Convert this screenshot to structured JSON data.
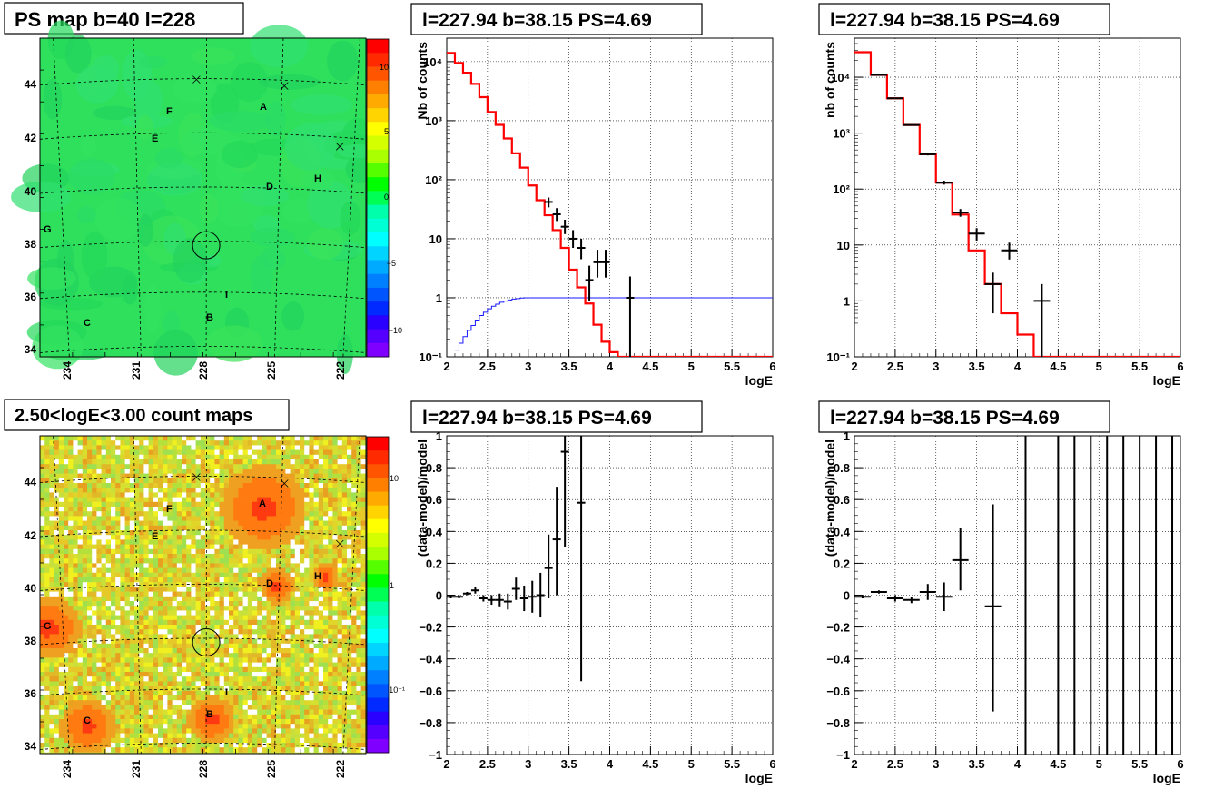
{
  "map1": {
    "title": "PS map b=40 l=228",
    "x_ticks": [
      "234",
      "231",
      "228",
      "225",
      "222"
    ],
    "y_ticks": [
      "44",
      "42",
      "40",
      "38",
      "36",
      "34"
    ],
    "colorbar_ticks": [
      "10",
      "5",
      "0",
      "−5",
      "−10"
    ],
    "sources": [
      "A",
      "B",
      "C",
      "D",
      "E",
      "F",
      "G",
      "H",
      "I"
    ]
  },
  "map2": {
    "title": "2.50<logE<3.00 count maps",
    "x_ticks": [
      "234",
      "231",
      "228",
      "225",
      "222"
    ],
    "y_ticks": [
      "44",
      "42",
      "40",
      "38",
      "36",
      "34"
    ],
    "colorbar_ticks": [
      "10",
      "1",
      "10⁻¹"
    ],
    "sources": [
      "A",
      "B",
      "C",
      "D",
      "E",
      "F",
      "G",
      "H",
      "I"
    ]
  },
  "chart_data": [
    {
      "type": "line",
      "title": "l=227.94 b=38.15 PS=4.69",
      "xlabel": "logE",
      "ylabel": "Nb of counts",
      "yscale": "log",
      "xlim": [
        2,
        6
      ],
      "ylim": [
        0.1,
        25000
      ],
      "grid": true,
      "x_ticks": [
        "2",
        "2.5",
        "3",
        "3.5",
        "4",
        "4.5",
        "5",
        "5.5",
        "6"
      ],
      "y_ticks": [
        "10⁴",
        "10³",
        "10²",
        "10",
        "1",
        "10⁻¹"
      ],
      "model_steps": {
        "edges": [
          2.0,
          2.1,
          2.2,
          2.3,
          2.4,
          2.5,
          2.6,
          2.7,
          2.8,
          2.9,
          3.0,
          3.1,
          3.2,
          3.3,
          3.4,
          3.5,
          3.6,
          3.7,
          3.8,
          3.9,
          4.0,
          4.1,
          6.0
        ],
        "values": [
          14000,
          9500,
          6500,
          4200,
          2500,
          1400,
          850,
          500,
          280,
          160,
          80,
          45,
          25,
          14,
          7,
          3,
          1.5,
          0.8,
          0.35,
          0.18,
          0.12,
          0.1
        ]
      },
      "acceptance_steps": {
        "edges": [
          2.1,
          2.15,
          2.2,
          2.25,
          2.3,
          2.35,
          2.4,
          2.45,
          2.5,
          2.55,
          2.6,
          2.65,
          2.7,
          2.75,
          2.8,
          2.85,
          2.9,
          2.95,
          3.0,
          3.1,
          6.0
        ],
        "values": [
          0.13,
          0.17,
          0.22,
          0.28,
          0.34,
          0.42,
          0.5,
          0.57,
          0.65,
          0.72,
          0.78,
          0.84,
          0.88,
          0.92,
          0.95,
          0.97,
          0.99,
          1.0,
          1.0,
          1.0
        ]
      },
      "points": [
        {
          "x": 3.25,
          "y": 42,
          "xerr": 0.05,
          "ylo": 34,
          "yhi": 50
        },
        {
          "x": 3.35,
          "y": 26,
          "xerr": 0.05,
          "ylo": 20,
          "yhi": 33
        },
        {
          "x": 3.45,
          "y": 16,
          "xerr": 0.05,
          "ylo": 12,
          "yhi": 21
        },
        {
          "x": 3.55,
          "y": 10,
          "xerr": 0.05,
          "ylo": 7,
          "yhi": 14
        },
        {
          "x": 3.65,
          "y": 7,
          "xerr": 0.05,
          "ylo": 4.5,
          "yhi": 10
        },
        {
          "x": 3.75,
          "y": 2,
          "xerr": 0.05,
          "ylo": 0.9,
          "yhi": 3.5
        },
        {
          "x": 3.85,
          "y": 4,
          "xerr": 0.05,
          "ylo": 2.2,
          "yhi": 6.5
        },
        {
          "x": 3.95,
          "y": 4,
          "xerr": 0.05,
          "ylo": 2.2,
          "yhi": 6.5
        },
        {
          "x": 4.25,
          "y": 1,
          "xerr": 0.05,
          "ylo": 0.1,
          "yhi": 2.3
        }
      ]
    },
    {
      "type": "line",
      "title": "l=227.94 b=38.15 PS=4.69",
      "xlabel": "logE",
      "ylabel": "nb of counts",
      "yscale": "log",
      "xlim": [
        2,
        6
      ],
      "ylim": [
        0.1,
        50000
      ],
      "grid": true,
      "x_ticks": [
        "2",
        "2.5",
        "3",
        "3.5",
        "4",
        "4.5",
        "5",
        "5.5",
        "6"
      ],
      "y_ticks": [
        "10⁴",
        "10³",
        "10²",
        "10",
        "1",
        "10⁻¹"
      ],
      "model_steps": {
        "edges": [
          2.0,
          2.2,
          2.4,
          2.6,
          2.8,
          3.0,
          3.2,
          3.4,
          3.6,
          3.8,
          4.0,
          4.2,
          6.0
        ],
        "values": [
          28000,
          11000,
          4200,
          1400,
          420,
          130,
          35,
          8,
          2,
          0.6,
          0.25,
          0.1
        ]
      },
      "points": [
        {
          "x": 2.3,
          "y": 11000,
          "xerr": 0.1,
          "ylo": 10800,
          "yhi": 11200
        },
        {
          "x": 2.5,
          "y": 4200,
          "xerr": 0.1,
          "ylo": 4100,
          "yhi": 4300
        },
        {
          "x": 2.7,
          "y": 1400,
          "xerr": 0.1,
          "ylo": 1360,
          "yhi": 1440
        },
        {
          "x": 2.9,
          "y": 420,
          "xerr": 0.1,
          "ylo": 400,
          "yhi": 440
        },
        {
          "x": 3.1,
          "y": 130,
          "xerr": 0.1,
          "ylo": 120,
          "yhi": 141
        },
        {
          "x": 3.3,
          "y": 38,
          "xerr": 0.1,
          "ylo": 32,
          "yhi": 44
        },
        {
          "x": 3.5,
          "y": 16,
          "xerr": 0.1,
          "ylo": 12,
          "yhi": 20
        },
        {
          "x": 3.7,
          "y": 2,
          "xerr": 0.1,
          "ylo": 0.6,
          "yhi": 3.2
        },
        {
          "x": 3.9,
          "y": 8,
          "xerr": 0.1,
          "ylo": 5.5,
          "yhi": 11
        },
        {
          "x": 4.3,
          "y": 1,
          "xerr": 0.1,
          "ylo": 0.1,
          "yhi": 2
        }
      ]
    },
    {
      "type": "scatter",
      "title": "l=227.94 b=38.15 PS=4.69",
      "xlabel": "logE",
      "ylabel": "(data-model)/model",
      "xlim": [
        2,
        6
      ],
      "ylim": [
        -1,
        1
      ],
      "grid": true,
      "x_ticks": [
        "2",
        "2.5",
        "3",
        "3.5",
        "4",
        "4.5",
        "5",
        "5.5",
        "6"
      ],
      "y_ticks": [
        "1",
        "0.8",
        "0.6",
        "0.4",
        "0.2",
        "0",
        "−0.2",
        "−0.4",
        "−0.6",
        "−0.8",
        "−1"
      ],
      "points": [
        {
          "x": 2.05,
          "y": -0.01,
          "xerr": 0.05,
          "ylo": -0.02,
          "yhi": 0.0
        },
        {
          "x": 2.15,
          "y": -0.01,
          "xerr": 0.05,
          "ylo": -0.02,
          "yhi": 0.0
        },
        {
          "x": 2.25,
          "y": 0.01,
          "xerr": 0.05,
          "ylo": 0.0,
          "yhi": 0.02
        },
        {
          "x": 2.35,
          "y": 0.03,
          "xerr": 0.05,
          "ylo": 0.01,
          "yhi": 0.05
        },
        {
          "x": 2.45,
          "y": -0.02,
          "xerr": 0.05,
          "ylo": -0.04,
          "yhi": 0.0
        },
        {
          "x": 2.55,
          "y": -0.03,
          "xerr": 0.05,
          "ylo": -0.06,
          "yhi": 0.0
        },
        {
          "x": 2.65,
          "y": -0.03,
          "xerr": 0.05,
          "ylo": -0.07,
          "yhi": 0.01
        },
        {
          "x": 2.75,
          "y": -0.04,
          "xerr": 0.05,
          "ylo": -0.09,
          "yhi": 0.01
        },
        {
          "x": 2.85,
          "y": 0.04,
          "xerr": 0.05,
          "ylo": -0.03,
          "yhi": 0.11
        },
        {
          "x": 2.95,
          "y": -0.02,
          "xerr": 0.05,
          "ylo": -0.1,
          "yhi": 0.06
        },
        {
          "x": 3.05,
          "y": -0.01,
          "xerr": 0.05,
          "ylo": -0.11,
          "yhi": 0.09
        },
        {
          "x": 3.15,
          "y": 0.0,
          "xerr": 0.05,
          "ylo": -0.14,
          "yhi": 0.14
        },
        {
          "x": 3.25,
          "y": 0.17,
          "xerr": 0.05,
          "ylo": -0.02,
          "yhi": 0.38
        },
        {
          "x": 3.35,
          "y": 0.35,
          "xerr": 0.05,
          "ylo": 0.0,
          "yhi": 0.68
        },
        {
          "x": 3.45,
          "y": 0.9,
          "xerr": 0.05,
          "ylo": 0.3,
          "yhi": 1.0
        },
        {
          "x": 3.65,
          "y": 0.58,
          "xerr": 0.05,
          "ylo": -0.54,
          "yhi": 1.0
        }
      ]
    },
    {
      "type": "scatter",
      "title": "l=227.94 b=38.15 PS=4.69",
      "xlabel": "logE",
      "ylabel": "(data-model)/model",
      "xlim": [
        2,
        6
      ],
      "ylim": [
        -1,
        1
      ],
      "grid": true,
      "x_ticks": [
        "2",
        "2.5",
        "3",
        "3.5",
        "4",
        "4.5",
        "5",
        "5.5",
        "6"
      ],
      "y_ticks": [
        "1",
        "0.8",
        "0.6",
        "0.4",
        "0.2",
        "0",
        "−0.2",
        "−0.4",
        "−0.6",
        "−0.8",
        "−1"
      ],
      "points": [
        {
          "x": 2.1,
          "y": -0.01,
          "xerr": 0.1,
          "ylo": -0.02,
          "yhi": 0.0
        },
        {
          "x": 2.3,
          "y": 0.02,
          "xerr": 0.1,
          "ylo": 0.01,
          "yhi": 0.03
        },
        {
          "x": 2.5,
          "y": -0.02,
          "xerr": 0.1,
          "ylo": -0.04,
          "yhi": 0.0
        },
        {
          "x": 2.7,
          "y": -0.03,
          "xerr": 0.1,
          "ylo": -0.05,
          "yhi": -0.01
        },
        {
          "x": 2.9,
          "y": 0.02,
          "xerr": 0.1,
          "ylo": -0.03,
          "yhi": 0.07
        },
        {
          "x": 3.1,
          "y": -0.01,
          "xerr": 0.1,
          "ylo": -0.1,
          "yhi": 0.08
        },
        {
          "x": 3.3,
          "y": 0.22,
          "xerr": 0.1,
          "ylo": 0.03,
          "yhi": 0.42
        },
        {
          "x": 3.7,
          "y": -0.07,
          "xerr": 0.1,
          "ylo": -0.73,
          "yhi": 0.57
        },
        {
          "x": 4.1,
          "y": 0.0,
          "xerr": 0,
          "ylo": -1.0,
          "yhi": 1.0
        },
        {
          "x": 4.5,
          "y": 0.0,
          "xerr": 0,
          "ylo": -1.0,
          "yhi": 1.0
        },
        {
          "x": 4.7,
          "y": 0.0,
          "xerr": 0,
          "ylo": -1.0,
          "yhi": 1.0
        },
        {
          "x": 4.9,
          "y": 0.0,
          "xerr": 0,
          "ylo": -1.0,
          "yhi": 1.0
        },
        {
          "x": 5.1,
          "y": 0.0,
          "xerr": 0,
          "ylo": -1.0,
          "yhi": 1.0
        },
        {
          "x": 5.3,
          "y": 0.0,
          "xerr": 0,
          "ylo": -1.0,
          "yhi": 1.0
        },
        {
          "x": 5.5,
          "y": 0.0,
          "xerr": 0,
          "ylo": -1.0,
          "yhi": 1.0
        },
        {
          "x": 5.7,
          "y": 0.0,
          "xerr": 0,
          "ylo": -1.0,
          "yhi": 1.0
        },
        {
          "x": 5.9,
          "y": 0.0,
          "xerr": 0,
          "ylo": -1.0,
          "yhi": 1.0
        }
      ]
    }
  ]
}
